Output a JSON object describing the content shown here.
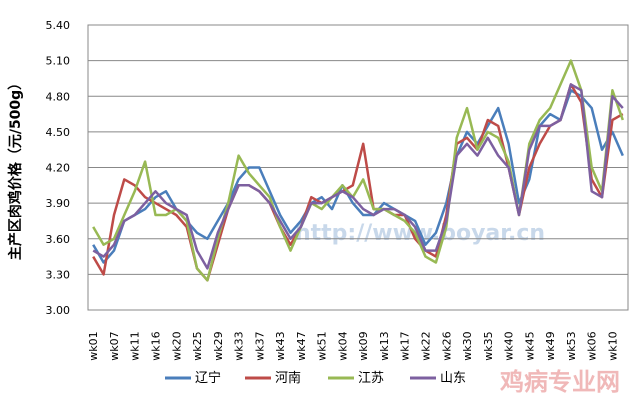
{
  "chart_data": {
    "type": "line",
    "y_label": "主产区肉鸡价格（元/500g）",
    "watermarks": [
      "http://www.boyar.cn",
      "鸡病专业网"
    ],
    "categories": [
      "wk01",
      null,
      "wk07",
      null,
      "wk11",
      null,
      "wk16",
      null,
      "wk20",
      null,
      "wk25",
      null,
      "wk29",
      null,
      "wk33",
      null,
      "wk37",
      null,
      "wk43",
      null,
      "wk47",
      null,
      "wk51",
      null,
      "wk04",
      null,
      "wk09",
      null,
      "wk13",
      null,
      "wk17",
      null,
      "wk22",
      null,
      "wk26",
      null,
      "wk30",
      null,
      "wk35",
      null,
      "wk40",
      null,
      "wk45",
      null,
      "wk49",
      null,
      "wk53",
      null,
      "wk06",
      null,
      "wk10",
      null
    ],
    "series": [
      {
        "name": "辽宁",
        "color": "#4a7ebb",
        "values": [
          3.55,
          3.4,
          3.5,
          3.75,
          3.8,
          3.85,
          3.95,
          4.0,
          3.85,
          3.75,
          3.65,
          3.6,
          3.75,
          3.9,
          4.1,
          4.2,
          4.2,
          4.0,
          3.8,
          3.65,
          3.75,
          3.9,
          3.95,
          3.85,
          4.05,
          3.9,
          3.8,
          3.8,
          3.9,
          3.85,
          3.8,
          3.75,
          3.55,
          3.65,
          3.9,
          4.3,
          4.5,
          4.4,
          4.55,
          4.7,
          4.4,
          3.9,
          4.1,
          4.55,
          4.65,
          4.6,
          4.85,
          4.8,
          4.7,
          4.35,
          4.5,
          4.3
        ]
      },
      {
        "name": "河南",
        "color": "#be4b48",
        "values": [
          3.45,
          3.3,
          3.8,
          4.1,
          4.05,
          3.95,
          3.9,
          3.85,
          3.8,
          3.7,
          3.35,
          3.25,
          3.55,
          3.85,
          4.05,
          4.05,
          4.0,
          3.9,
          3.7,
          3.55,
          3.7,
          3.95,
          3.9,
          3.95,
          4.0,
          4.05,
          4.4,
          3.85,
          3.85,
          3.8,
          3.8,
          3.6,
          3.5,
          3.45,
          3.8,
          4.4,
          4.45,
          4.35,
          4.6,
          4.55,
          4.2,
          3.8,
          4.2,
          4.4,
          4.55,
          4.6,
          4.9,
          4.75,
          4.1,
          3.95,
          4.6,
          4.65
        ]
      },
      {
        "name": "江苏",
        "color": "#98b954",
        "values": [
          3.7,
          3.55,
          3.6,
          3.8,
          4.0,
          4.25,
          3.8,
          3.8,
          3.85,
          3.75,
          3.35,
          3.25,
          3.6,
          3.9,
          4.3,
          4.15,
          4.05,
          3.95,
          3.7,
          3.5,
          3.7,
          3.9,
          3.85,
          3.95,
          4.05,
          3.95,
          4.1,
          3.85,
          3.85,
          3.8,
          3.75,
          3.65,
          3.45,
          3.4,
          3.7,
          4.45,
          4.7,
          4.35,
          4.5,
          4.45,
          4.25,
          3.8,
          4.4,
          4.6,
          4.7,
          4.9,
          5.1,
          4.85,
          4.2,
          4.0,
          4.85,
          4.6
        ]
      },
      {
        "name": "山东",
        "color": "#7d60a0",
        "values": [
          3.5,
          3.45,
          3.55,
          3.75,
          3.8,
          3.9,
          4.0,
          3.9,
          3.85,
          3.8,
          3.5,
          3.35,
          3.65,
          3.85,
          4.05,
          4.05,
          4.0,
          3.9,
          3.75,
          3.6,
          3.7,
          3.9,
          3.9,
          3.95,
          4.0,
          3.95,
          3.85,
          3.8,
          3.85,
          3.85,
          3.8,
          3.7,
          3.5,
          3.5,
          3.75,
          4.3,
          4.4,
          4.3,
          4.45,
          4.3,
          4.2,
          3.8,
          4.35,
          4.55,
          4.55,
          4.6,
          4.9,
          4.85,
          4.0,
          3.95,
          4.8,
          4.7
        ]
      }
    ],
    "ylim": [
      3.0,
      5.4
    ],
    "yticks": [
      {
        "value": 3.0,
        "label": "3.00"
      },
      {
        "value": 3.3,
        "label": "3.30"
      },
      {
        "value": 3.6,
        "label": "3.60"
      },
      {
        "value": 3.9,
        "label": "3.90"
      },
      {
        "value": 4.2,
        "label": "4.20"
      },
      {
        "value": 4.5,
        "label": "4.50"
      },
      {
        "value": 4.8,
        "label": "4.80"
      },
      {
        "value": 5.1,
        "label": "5.10"
      },
      {
        "value": 5.4,
        "label": "5.40"
      }
    ],
    "grid": true,
    "legend": "bottom"
  }
}
